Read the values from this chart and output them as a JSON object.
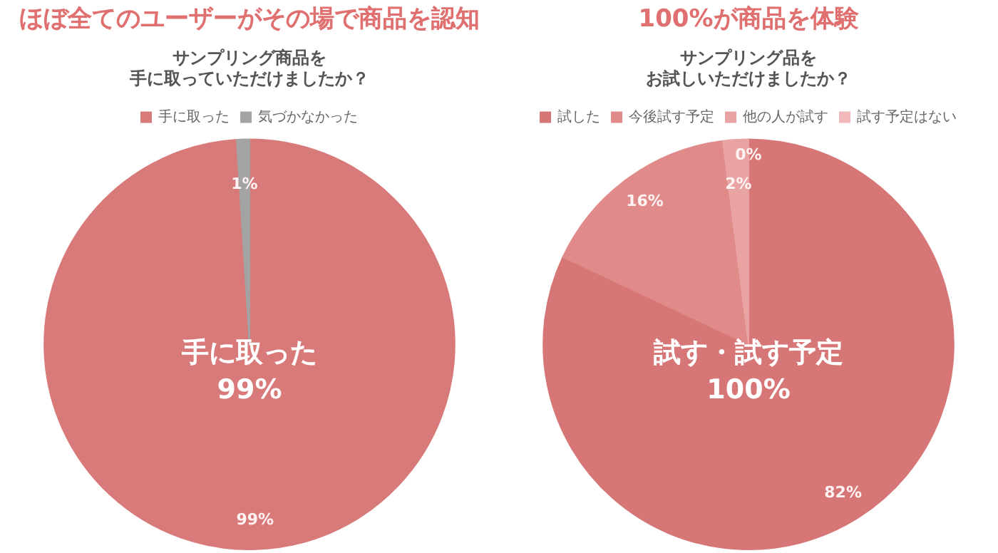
{
  "chart_data": [
    {
      "type": "pie",
      "title": "ほぼ全てのユーザーがその場で商品を認知",
      "subtitle": [
        "サンプリング商品を",
        "手に取っていただけましたか？"
      ],
      "categories": [
        "手に取った",
        "気づかなかった"
      ],
      "values": [
        99,
        1
      ],
      "colors": [
        "#d97a7a",
        "#a3a3a3"
      ],
      "value_labels": [
        "99%",
        "1%"
      ],
      "legend": "top",
      "annotations": [
        "手に取った\n99%"
      ]
    },
    {
      "type": "pie",
      "title": "100%が商品を体験",
      "subtitle": [
        "サンプリング品を",
        "お試しいただけましたか？"
      ],
      "categories": [
        "試した",
        "今後試す予定",
        "他の人が試す",
        "試す予定はない"
      ],
      "values": [
        82,
        16,
        2,
        0
      ],
      "colors": [
        "#d67676",
        "#e08a8a",
        "#e9a3a3",
        "#f0b8b8"
      ],
      "value_labels": [
        "82%",
        "16%",
        "2%",
        "0%"
      ],
      "legend": "top",
      "annotations": [
        "試す・試す予定\n100%"
      ]
    }
  ]
}
